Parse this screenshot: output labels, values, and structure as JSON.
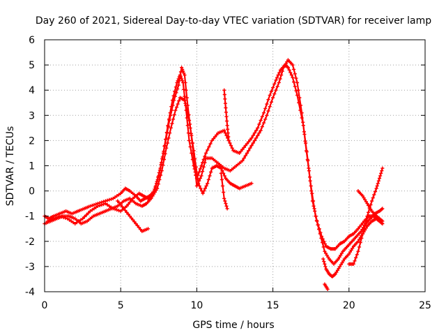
{
  "chart_data": {
    "type": "scatter",
    "title": "Day 260 of 2021, Sidereal Day-to-day VTEC variation (SDTVAR) for receiver lamp",
    "xlabel": "GPS time / hours",
    "ylabel": "SDTVAR / TECUs",
    "xlim": [
      0,
      25
    ],
    "ylim": [
      -4,
      6
    ],
    "xticks": [
      0,
      5,
      10,
      15,
      20,
      25
    ],
    "yticks": [
      -4,
      -3,
      -2,
      -1,
      0,
      1,
      2,
      3,
      4,
      5,
      6
    ],
    "grid": true,
    "marker": "+",
    "color": "#ff0000",
    "series": [
      {
        "x": [
          0.0,
          0.3,
          0.6,
          1.0,
          1.4,
          1.8,
          2.2,
          2.6,
          3.0,
          3.5,
          4.0,
          4.5,
          5.0,
          5.3,
          5.6,
          6.0,
          6.3,
          6.6,
          6.9,
          7.2,
          7.5,
          7.8,
          8.1,
          8.4,
          8.7,
          8.9,
          9.1,
          9.3,
          9.5,
          9.8,
          10.0,
          10.3,
          10.6,
          11.0,
          11.4,
          11.8,
          12.1,
          12.4,
          12.8,
          13.2,
          13.6,
          14.0,
          14.4,
          14.8,
          15.2,
          15.5,
          15.8,
          16.0,
          16.3,
          16.6,
          17.0,
          17.3,
          17.6,
          17.9,
          18.2,
          18.5,
          18.8,
          19.1,
          19.4,
          19.7,
          20.0,
          20.3,
          20.6,
          21.0,
          21.3,
          21.6,
          21.9,
          22.1
        ],
        "y": [
          -1.0,
          -1.1,
          -1.0,
          -0.9,
          -0.8,
          -0.9,
          -0.8,
          -0.7,
          -0.6,
          -0.5,
          -0.4,
          -0.3,
          -0.1,
          0.1,
          0.0,
          -0.2,
          -0.4,
          -0.3,
          -0.2,
          0.0,
          0.6,
          1.5,
          2.6,
          3.6,
          4.3,
          4.6,
          4.3,
          3.2,
          2.0,
          1.0,
          0.5,
          1.0,
          1.5,
          2.0,
          2.3,
          2.4,
          2.0,
          1.6,
          1.5,
          1.8,
          2.1,
          2.5,
          3.1,
          3.8,
          4.4,
          4.8,
          5.0,
          4.9,
          4.5,
          3.8,
          2.6,
          1.2,
          -0.4,
          -1.2,
          -1.8,
          -2.2,
          -2.3,
          -2.3,
          -2.1,
          -2.0,
          -1.8,
          -1.7,
          -1.5,
          -1.2,
          -1.0,
          -1.0,
          -1.1,
          -1.2
        ]
      },
      {
        "x": [
          0.0,
          0.4,
          0.8,
          1.2,
          1.6,
          2.0,
          2.4,
          2.8,
          3.2,
          3.6,
          4.0,
          4.4,
          4.8,
          5.2,
          5.6,
          6.0,
          6.4,
          6.7,
          7.0,
          7.3,
          7.6,
          7.9,
          8.2,
          8.5,
          8.8,
          9.0,
          9.2,
          9.4,
          9.7,
          10.0,
          10.3,
          10.6,
          11.0,
          11.4,
          11.8,
          12.2,
          12.6,
          13.0,
          13.4,
          13.8,
          14.2,
          14.6,
          15.0,
          15.4,
          15.7,
          16.0,
          16.3,
          16.6,
          16.9,
          17.2,
          17.5,
          17.8,
          18.1,
          18.4,
          18.7,
          19.0,
          19.3,
          19.6,
          19.9,
          20.2,
          20.5,
          20.8,
          21.1,
          21.4,
          21.7,
          22.0,
          22.2
        ],
        "y": [
          -1.3,
          -1.2,
          -1.1,
          -1.0,
          -1.0,
          -1.1,
          -1.3,
          -1.2,
          -1.0,
          -0.9,
          -0.8,
          -0.7,
          -0.6,
          -0.4,
          -0.3,
          -0.5,
          -0.6,
          -0.5,
          -0.3,
          0.2,
          0.9,
          1.8,
          2.8,
          3.6,
          4.2,
          4.9,
          4.6,
          3.4,
          1.9,
          0.2,
          0.6,
          1.3,
          1.3,
          1.1,
          0.9,
          0.8,
          1.0,
          1.2,
          1.6,
          2.0,
          2.4,
          3.0,
          3.7,
          4.3,
          4.9,
          5.2,
          5.0,
          4.3,
          3.1,
          1.6,
          0.2,
          -1.0,
          -1.7,
          -2.4,
          -2.7,
          -2.9,
          -2.7,
          -2.4,
          -2.2,
          -2.0,
          -1.8,
          -1.6,
          -1.3,
          -1.1,
          -0.9,
          -0.8,
          -0.7
        ]
      },
      {
        "x": [
          0.2,
          0.6,
          1.0,
          1.5,
          2.0,
          2.5,
          3.0,
          3.5,
          4.0,
          4.5,
          5.0,
          5.4,
          5.8,
          6.2,
          6.5,
          6.8,
          7.1,
          7.4,
          7.7,
          8.0,
          8.3,
          8.6,
          8.9,
          9.2,
          9.5,
          9.8,
          10.1,
          10.4,
          10.7,
          11.0,
          11.3,
          11.6,
          11.9,
          12.2,
          12.5,
          12.8,
          13.2,
          13.6
        ],
        "y": [
          -1.2,
          -1.1,
          -1.0,
          -1.1,
          -1.3,
          -1.1,
          -0.8,
          -0.6,
          -0.5,
          -0.7,
          -0.8,
          -0.6,
          -0.3,
          -0.1,
          -0.2,
          -0.3,
          -0.2,
          0.1,
          0.8,
          1.7,
          2.5,
          3.2,
          3.7,
          3.6,
          2.8,
          1.6,
          0.3,
          -0.1,
          0.3,
          0.9,
          1.0,
          0.9,
          0.5,
          0.3,
          0.2,
          0.1,
          0.2,
          0.3
        ]
      },
      {
        "x": [
          4.8,
          5.2,
          5.6,
          6.0,
          6.4,
          6.8
        ],
        "y": [
          -0.4,
          -0.7,
          -1.0,
          -1.3,
          -1.6,
          -1.5
        ]
      },
      {
        "x": [
          11.8,
          11.9,
          12.0,
          12.1
        ],
        "y": [
          4.0,
          3.3,
          2.6,
          2.0
        ]
      },
      {
        "x": [
          11.6,
          11.8,
          12.0
        ],
        "y": [
          0.7,
          -0.3,
          -0.7
        ]
      },
      {
        "x": [
          18.3,
          18.5,
          18.7,
          18.9,
          19.1,
          19.4,
          19.7,
          20.0,
          20.3,
          20.6,
          20.9,
          21.2,
          21.5,
          21.8,
          22.0,
          22.2
        ],
        "y": [
          -2.7,
          -3.1,
          -3.3,
          -3.4,
          -3.3,
          -3.0,
          -2.7,
          -2.5,
          -2.2,
          -2.0,
          -1.7,
          -1.4,
          -1.2,
          -1.1,
          -1.2,
          -1.3
        ]
      },
      {
        "x": [
          18.4,
          18.6
        ],
        "y": [
          -3.7,
          -3.9
        ]
      },
      {
        "x": [
          20.0,
          20.3,
          20.6,
          20.9,
          21.2,
          21.5,
          21.8,
          22.0,
          22.2
        ],
        "y": [
          -2.9,
          -2.9,
          -2.4,
          -1.7,
          -1.0,
          -0.4,
          0.1,
          0.5,
          0.9
        ]
      },
      {
        "x": [
          20.6,
          20.9,
          21.2,
          21.5,
          21.8,
          22.0,
          22.2
        ],
        "y": [
          0.0,
          -0.2,
          -0.5,
          -0.8,
          -1.0,
          -1.1,
          -1.2
        ]
      }
    ]
  }
}
